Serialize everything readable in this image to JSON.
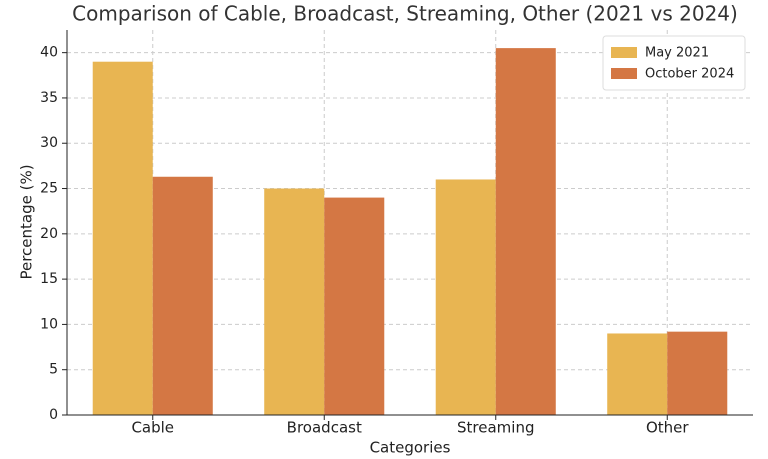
{
  "chart_data": {
    "type": "bar",
    "title": "Comparison of Cable, Broadcast, Streaming, Other (2021 vs 2024)",
    "x_label": "Categories",
    "y_label": "Percentage (%)",
    "categories": [
      "Cable",
      "Broadcast",
      "Streaming",
      "Other"
    ],
    "series": [
      {
        "name": "May 2021",
        "color": "#e8b552",
        "values": [
          39,
          25,
          26,
          9
        ]
      },
      {
        "name": "October 2024",
        "color": "#d47744",
        "values": [
          26.3,
          24,
          40.5,
          9.2
        ]
      }
    ],
    "ylim": [
      0,
      42.5
    ],
    "yticks": [
      0,
      5,
      10,
      15,
      20,
      25,
      30,
      35,
      40
    ],
    "grid": true,
    "legend": "upper right"
  }
}
